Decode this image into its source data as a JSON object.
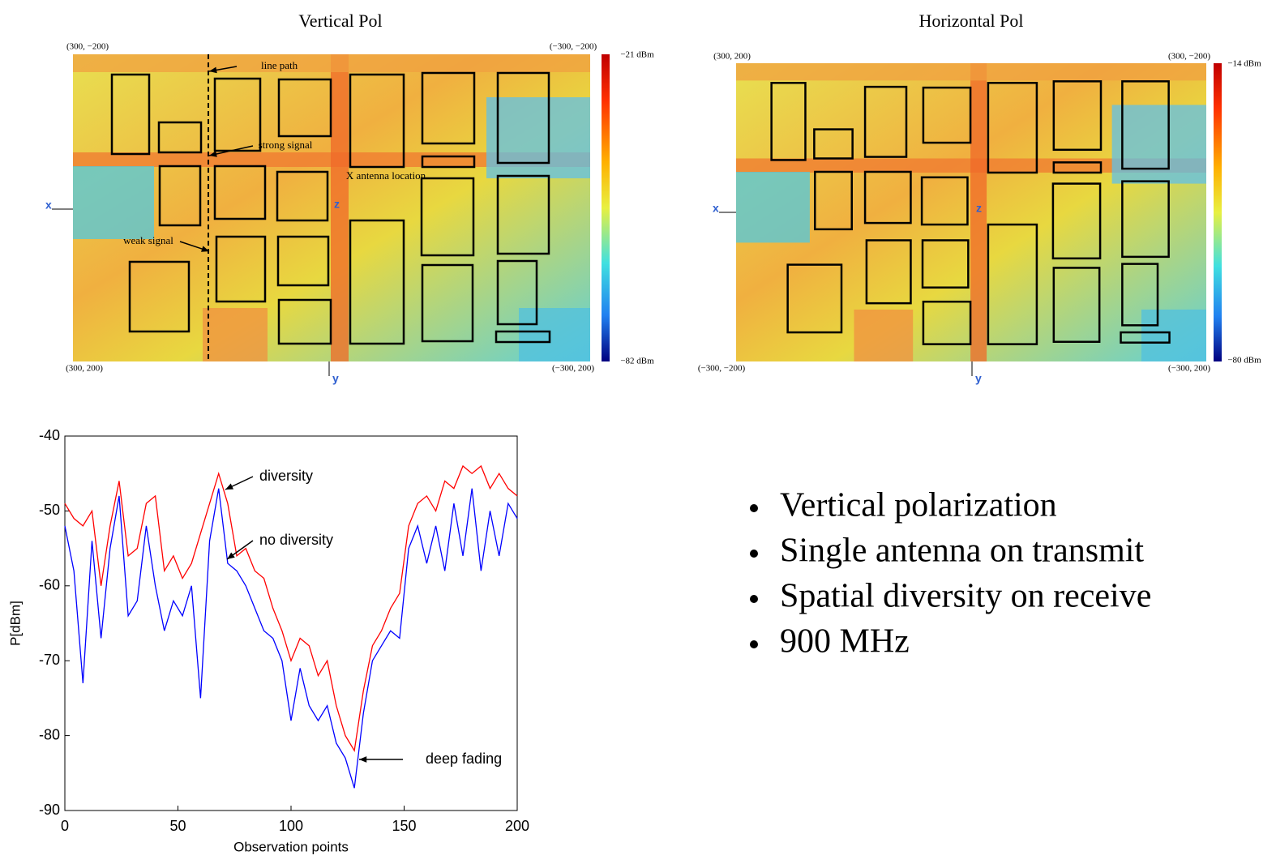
{
  "panels": [
    {
      "title": "Vertical Pol",
      "corner_labels": [
        "(300, −200)",
        "(−300, −200)",
        "(300, 200)",
        "(−300, 200)"
      ],
      "colorbar_max": "−21 dBm",
      "colorbar_min": "−82 dBm",
      "axis_labels": [
        "x",
        "y",
        "z"
      ],
      "annotations": [
        "line path",
        "strong signal",
        "X antenna location",
        "weak signal"
      ]
    },
    {
      "title": "Horizontal Pol",
      "corner_labels": [
        "(300, 200)",
        "(300, −200)",
        "(−300, −200)",
        "(−300, 200)"
      ],
      "colorbar_max": "−14 dBm",
      "colorbar_min": "−80 dBm",
      "axis_labels": [
        "x",
        "y",
        "z"
      ]
    }
  ],
  "bullets": [
    "Vertical polarization",
    "Single antenna on transmit",
    "Spatial diversity on receive",
    "900 MHz"
  ],
  "chart_data": {
    "type": "line",
    "x_label": "Observation points",
    "y_label": "P[dBm]",
    "xlim": [
      0,
      200
    ],
    "ylim": [
      -90,
      -40
    ],
    "xticks": [
      0,
      50,
      100,
      150,
      200
    ],
    "yticks": [
      -40,
      -50,
      -60,
      -70,
      -80,
      -90
    ],
    "x": [
      0,
      4,
      8,
      12,
      16,
      20,
      24,
      28,
      32,
      36,
      40,
      44,
      48,
      52,
      56,
      60,
      64,
      68,
      72,
      76,
      80,
      84,
      88,
      92,
      96,
      100,
      104,
      108,
      112,
      116,
      120,
      124,
      128,
      132,
      136,
      140,
      144,
      148,
      152,
      156,
      160,
      164,
      168,
      172,
      176,
      180,
      184,
      188,
      192,
      196,
      200
    ],
    "series": [
      {
        "name": "diversity",
        "color": "#ff0000",
        "values": [
          -49,
          -51,
          -52,
          -50,
          -60,
          -52,
          -46,
          -56,
          -55,
          -49,
          -48,
          -58,
          -56,
          -59,
          -57,
          -53,
          -49,
          -45,
          -49,
          -56,
          -55,
          -58,
          -59,
          -63,
          -66,
          -70,
          -67,
          -68,
          -72,
          -70,
          -76,
          -80,
          -82,
          -74,
          -68,
          -66,
          -63,
          -61,
          -52,
          -49,
          -48,
          -50,
          -46,
          -47,
          -44,
          -45,
          -44,
          -47,
          -45,
          -47,
          -48
        ]
      },
      {
        "name": "no diversity",
        "color": "#0000ff",
        "values": [
          -52,
          -58,
          -73,
          -54,
          -67,
          -55,
          -48,
          -64,
          -62,
          -52,
          -60,
          -66,
          -62,
          -64,
          -60,
          -75,
          -54,
          -47,
          -57,
          -58,
          -60,
          -63,
          -66,
          -67,
          -70,
          -78,
          -71,
          -76,
          -78,
          -76,
          -81,
          -83,
          -87,
          -77,
          -70,
          -68,
          -66,
          -67,
          -55,
          -52,
          -57,
          -52,
          -58,
          -49,
          -56,
          -47,
          -58,
          -50,
          -56,
          -49,
          -51
        ]
      }
    ],
    "annotations": [
      "diversity",
      "no diversity",
      "deep fading"
    ]
  }
}
